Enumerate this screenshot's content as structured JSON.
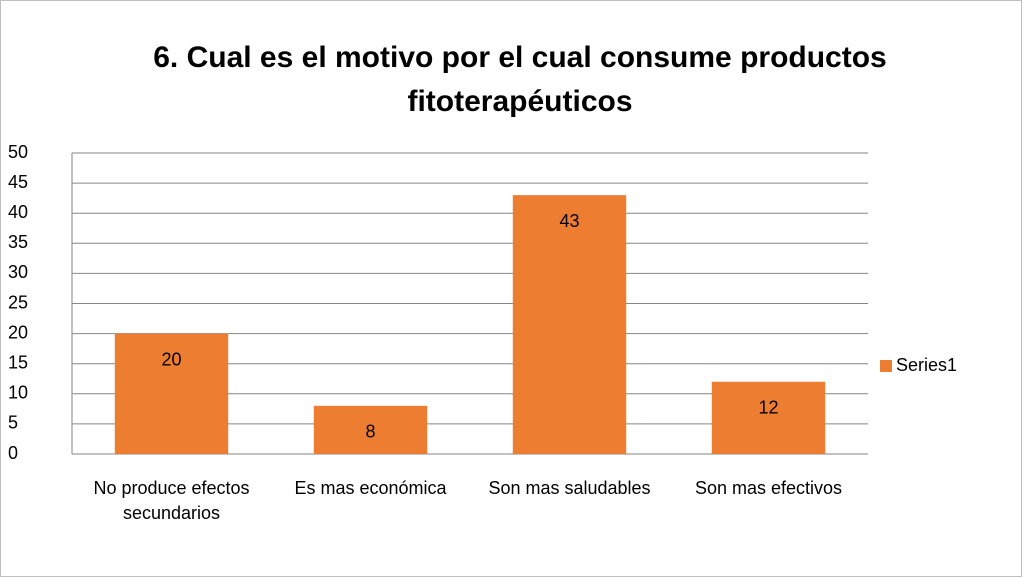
{
  "chart_data": {
    "type": "bar",
    "title": "6. Cual es el motivo por el cual consume productos fitoterapéuticos",
    "categories": [
      "No produce efectos secundarios",
      "Es mas económica",
      "Son mas saludables",
      "Son mas efectivos"
    ],
    "series": [
      {
        "name": "Series1",
        "color": "#ed7d31",
        "values": [
          20,
          8,
          43,
          12
        ]
      }
    ],
    "ylim": [
      0,
      50
    ],
    "yticks": [
      0,
      5,
      10,
      15,
      20,
      25,
      30,
      35,
      40,
      45,
      50
    ],
    "grid": true,
    "legend": "right",
    "data_labels": true
  }
}
